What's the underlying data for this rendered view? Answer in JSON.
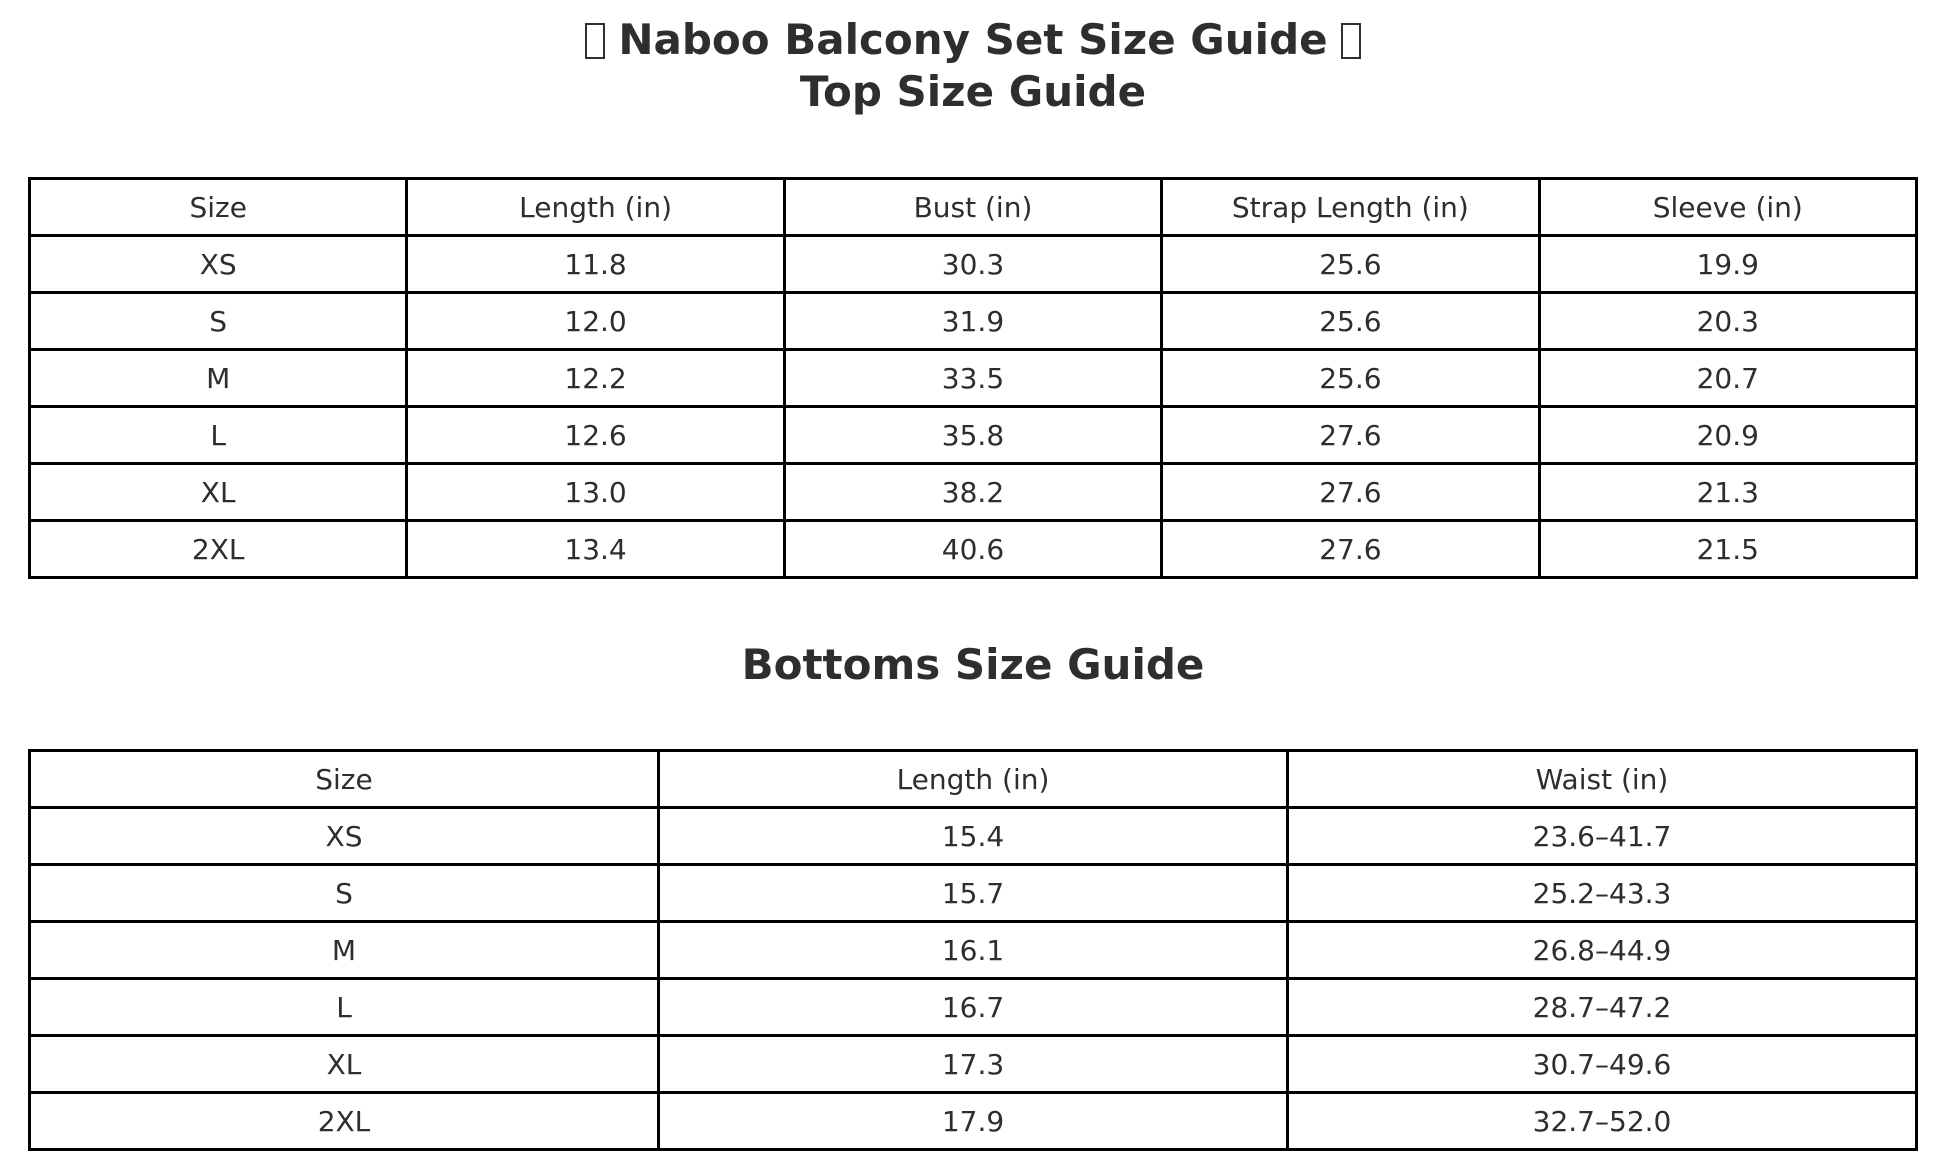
{
  "header": {
    "main_title": "Naboo Balcony Set Size Guide",
    "top_table_title": "Top Size Guide",
    "bottoms_table_title": "Bottoms Size Guide"
  },
  "colors": {
    "text": "#2e2e2e",
    "table_border": "#000000",
    "background": "#ffffff"
  },
  "chart_data": [
    {
      "type": "table",
      "title": "Top Size Guide",
      "columns": [
        "Size",
        "Length (in)",
        "Bust (in)",
        "Strap Length (in)",
        "Sleeve (in)"
      ],
      "rows": [
        [
          "XS",
          "11.8",
          "30.3",
          "25.6",
          "19.9"
        ],
        [
          "S",
          "12.0",
          "31.9",
          "25.6",
          "20.3"
        ],
        [
          "M",
          "12.2",
          "33.5",
          "25.6",
          "20.7"
        ],
        [
          "L",
          "12.6",
          "35.8",
          "27.6",
          "20.9"
        ],
        [
          "XL",
          "13.0",
          "38.2",
          "27.6",
          "21.3"
        ],
        [
          "2XL",
          "13.4",
          "40.6",
          "27.6",
          "21.5"
        ]
      ]
    },
    {
      "type": "table",
      "title": "Bottoms Size Guide",
      "columns": [
        "Size",
        "Length (in)",
        "Waist (in)"
      ],
      "rows": [
        [
          "XS",
          "15.4",
          "23.6–41.7"
        ],
        [
          "S",
          "15.7",
          "25.2–43.3"
        ],
        [
          "M",
          "16.1",
          "26.8–44.9"
        ],
        [
          "L",
          "16.7",
          "28.7–47.2"
        ],
        [
          "XL",
          "17.3",
          "30.7–49.6"
        ],
        [
          "2XL",
          "17.9",
          "32.7–52.0"
        ]
      ]
    }
  ]
}
